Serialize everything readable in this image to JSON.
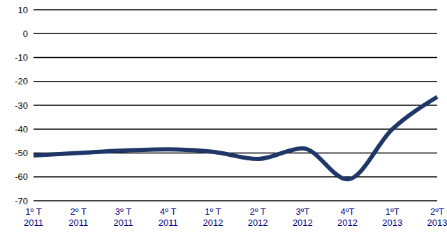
{
  "chart_data": {
    "type": "line",
    "categories": [
      "1º T 2011",
      "2º T 2011",
      "3º T 2011",
      "4º T 2011",
      "1º T 2012",
      "2º T 2012",
      "3ºT 2012",
      "4ºT 2012",
      "1ºT 2013",
      "2ºT 2013"
    ],
    "values": [
      -51,
      -50,
      -49,
      -48.5,
      -49.5,
      -52.5,
      -48,
      -61,
      -40,
      -26.5
    ],
    "color": "#1f3768",
    "ylim": [
      -70,
      10
    ],
    "yticks": [
      -70,
      -60,
      -50,
      -40,
      -30,
      -20,
      -10,
      0,
      10
    ],
    "grid": true,
    "marker": "none",
    "line_style": "solid"
  }
}
